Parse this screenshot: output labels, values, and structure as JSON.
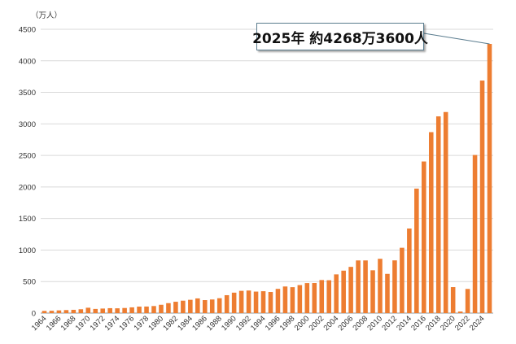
{
  "chart_data": {
    "type": "bar",
    "unit_label": "（万人）",
    "ylim": [
      0,
      4500
    ],
    "y_ticks": [
      0,
      500,
      1000,
      1500,
      2000,
      2500,
      3000,
      3500,
      4000,
      4500
    ],
    "bar_color": "#ed7d31",
    "grid": true,
    "categories": [
      1964,
      1965,
      1966,
      1967,
      1968,
      1969,
      1970,
      1971,
      1972,
      1973,
      1974,
      1975,
      1976,
      1977,
      1978,
      1979,
      1980,
      1981,
      1982,
      1983,
      1984,
      1985,
      1986,
      1987,
      1988,
      1989,
      1990,
      1991,
      1992,
      1993,
      1994,
      1995,
      1996,
      1997,
      1998,
      1999,
      2000,
      2001,
      2002,
      2003,
      2004,
      2005,
      2006,
      2007,
      2008,
      2009,
      2010,
      2011,
      2012,
      2013,
      2014,
      2015,
      2016,
      2017,
      2018,
      2019,
      2020,
      2021,
      2022,
      2023,
      2024,
      2025
    ],
    "x_tick_labels": [
      "1964",
      "1966",
      "1968",
      "1970",
      "1972",
      "1974",
      "1976",
      "1978",
      "1980",
      "1982",
      "1984",
      "1986",
      "1988",
      "1990",
      "1992",
      "1994",
      "1996",
      "1998",
      "2000",
      "2002",
      "2004",
      "2006",
      "2008",
      "2010",
      "2012",
      "2014",
      "2016",
      "2018",
      "2020",
      "2022",
      "2024"
    ],
    "values": [
      35,
      37,
      43,
      48,
      52,
      61,
      85,
      66,
      72,
      78,
      76,
      81,
      91,
      103,
      104,
      112,
      132,
      158,
      180,
      197,
      211,
      233,
      206,
      216,
      236,
      284,
      324,
      353,
      358,
      341,
      347,
      335,
      384,
      422,
      411,
      444,
      476,
      477,
      524,
      521,
      614,
      673,
      733,
      835,
      835,
      679,
      861,
      622,
      836,
      1036,
      1341,
      1974,
      2404,
      2869,
      3119,
      3188,
      412,
      25,
      383,
      2507,
      3687,
      4268
    ],
    "annotation": {
      "text": "2025年 約4268万3600人",
      "target_category": 2025,
      "target_value": 4268
    }
  }
}
